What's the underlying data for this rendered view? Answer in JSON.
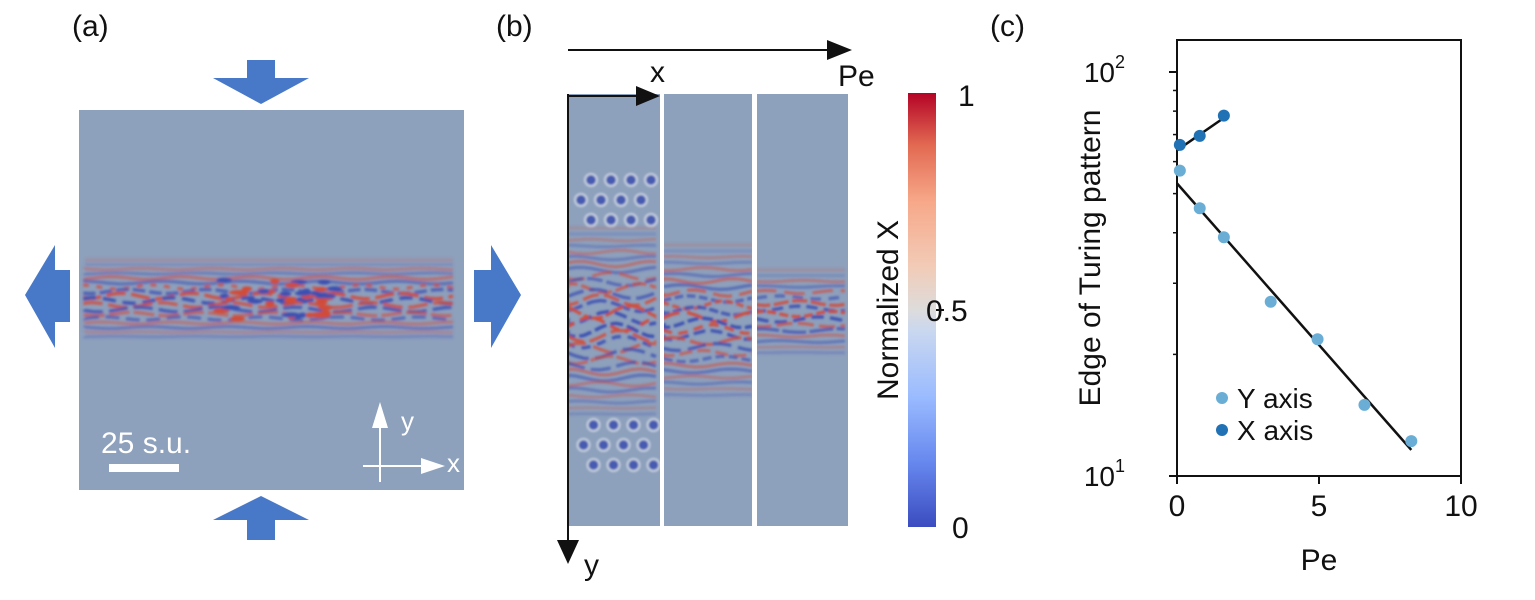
{
  "panels": {
    "a": {
      "label": "(a)",
      "scalebar_text": "25 s.u.",
      "axis_x": "x",
      "axis_y": "y",
      "colors": {
        "background": "#8da0bc",
        "arrow": "#4878c8",
        "pattern_red": "#d24b38",
        "pattern_blue": "#3a4fb0",
        "pattern_light": "#d6dde8"
      }
    },
    "b": {
      "label": "(b)",
      "axis_x": "x",
      "axis_y": "y",
      "param_label": "Pe",
      "colorbar": {
        "label": "Normalized X",
        "ticks": [
          "1",
          "0.5",
          "0"
        ],
        "range": [
          0,
          1
        ],
        "colormap": "coolwarm"
      }
    }
  },
  "chart_data": {
    "type": "scatter",
    "panel_label": "(c)",
    "xlabel": "Pe",
    "ylabel": "Edge of Turing pattern",
    "xlim": [
      0,
      10
    ],
    "ylim": [
      10,
      120
    ],
    "y_scale": "log",
    "x_ticks": [
      "0",
      "5",
      "10"
    ],
    "y_ticks": [
      {
        "value": 100,
        "label": "10",
        "exp": "2"
      },
      {
        "value": 10,
        "label": "10",
        "exp": "1"
      }
    ],
    "grid": false,
    "legend_position": "bottom-right",
    "series": [
      {
        "name": "Y axis",
        "color": "#6aaed6",
        "points": [
          [
            0.1,
            57
          ],
          [
            0.8,
            46
          ],
          [
            1.65,
            39
          ],
          [
            3.3,
            27
          ],
          [
            4.95,
            21.8
          ],
          [
            6.6,
            15
          ],
          [
            8.25,
            12.2
          ]
        ],
        "fit": [
          [
            0,
            53
          ],
          [
            8.25,
            11.6
          ]
        ]
      },
      {
        "name": "X axis",
        "color": "#2171b5",
        "points": [
          [
            0.1,
            66
          ],
          [
            0.8,
            69.5
          ],
          [
            1.65,
            78
          ]
        ],
        "fit": [
          [
            0,
            64
          ],
          [
            1.65,
            77
          ]
        ]
      }
    ]
  }
}
